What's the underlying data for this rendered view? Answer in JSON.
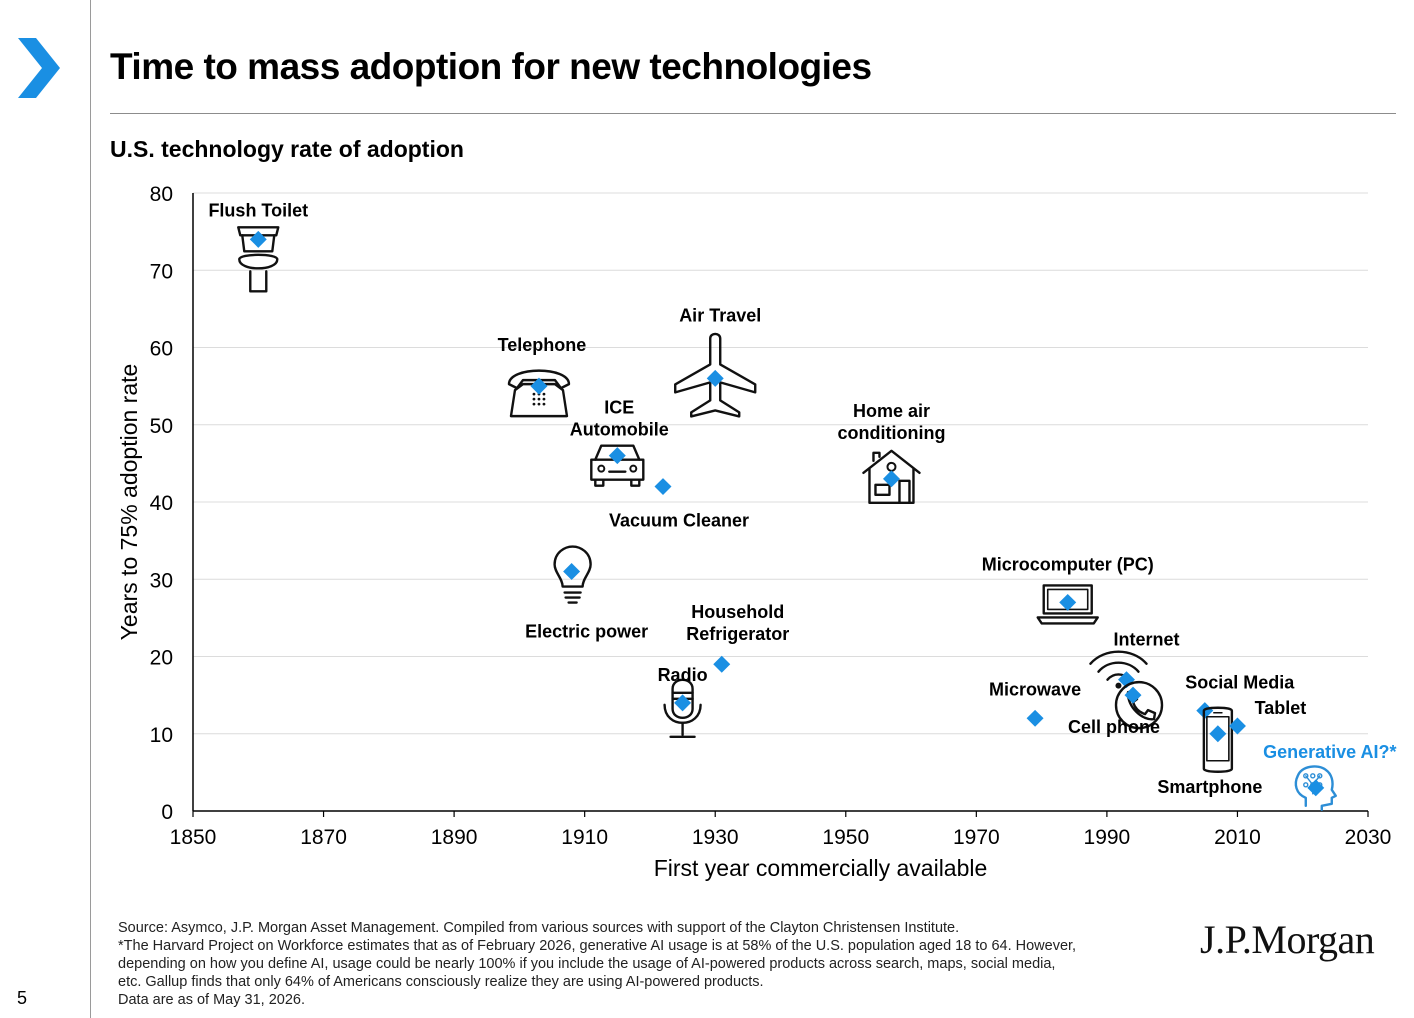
{
  "page": {
    "title": "Time to mass adoption for new technologies",
    "subtitle": "U.S. technology rate of adoption",
    "page_number": "5",
    "logo": "J.P.Morgan",
    "footer": [
      "Source: Asymco, J.P. Morgan Asset Management. Compiled from various sources with support of the Clayton Christensen Institute.",
      "*The Harvard Project on Workforce estimates that as of February 2026, generative AI usage is at 58% of the U.S. population aged 18 to 64. However,",
      "depending on how you define AI, usage could be nearly 100% if you include the usage of AI-powered products across search, maps, social media,",
      "etc. Gallup finds that only 64% of Americans consciously realize they are using AI-powered products.",
      "Data are as of May 31, 2026."
    ],
    "colors": {
      "marker": "#1a8fe3",
      "highlight_label": "#1a8fe3",
      "brand_chevron": "#1a8fe3"
    }
  },
  "chart_data": {
    "type": "scatter",
    "xlabel": "First year commercially available",
    "ylabel": "Years to 75% adoption rate",
    "xlim": [
      1850,
      2030
    ],
    "ylim": [
      0,
      80
    ],
    "xticks": [
      1850,
      1870,
      1890,
      1910,
      1930,
      1950,
      1970,
      1990,
      2010,
      2030
    ],
    "yticks": [
      0,
      10,
      20,
      30,
      40,
      50,
      60,
      70,
      80
    ],
    "grid": "horizontal",
    "points": [
      {
        "label": "Flush Toilet",
        "x": 1860,
        "y": 74,
        "icon": "toilet-icon"
      },
      {
        "label": "Telephone",
        "x": 1903,
        "y": 55,
        "icon": "telephone-icon"
      },
      {
        "label": "Air Travel",
        "x": 1930,
        "y": 56,
        "icon": "airplane-icon"
      },
      {
        "label": "ICE Automobile",
        "x": 1915,
        "y": 46,
        "icon": "car-icon"
      },
      {
        "label": "Vacuum Cleaner",
        "x": 1922,
        "y": 42
      },
      {
        "label": "Home air conditioning",
        "x": 1957,
        "y": 43,
        "icon": "house-icon"
      },
      {
        "label": "Electric power",
        "x": 1908,
        "y": 31,
        "icon": "lightbulb-icon"
      },
      {
        "label": "Household Refrigerator",
        "x": 1931,
        "y": 19
      },
      {
        "label": "Radio",
        "x": 1925,
        "y": 14,
        "icon": "microphone-icon"
      },
      {
        "label": "Microcomputer (PC)",
        "x": 1984,
        "y": 27,
        "icon": "laptop-icon"
      },
      {
        "label": "Microwave",
        "x": 1979,
        "y": 12
      },
      {
        "label": "Internet",
        "x": 1993,
        "y": 17,
        "icon": "wifi-icon"
      },
      {
        "label": "Cell phone",
        "x": 1994,
        "y": 15,
        "icon": "phone-handset-icon"
      },
      {
        "label": "Social Media",
        "x": 2005,
        "y": 13
      },
      {
        "label": "Smartphone",
        "x": 2007,
        "y": 10,
        "icon": "smartphone-icon"
      },
      {
        "label": "Tablet",
        "x": 2010,
        "y": 11
      },
      {
        "label": "Generative AI?*",
        "x": 2022,
        "y": 3,
        "icon": "ai-head-icon",
        "highlight": true
      }
    ]
  }
}
